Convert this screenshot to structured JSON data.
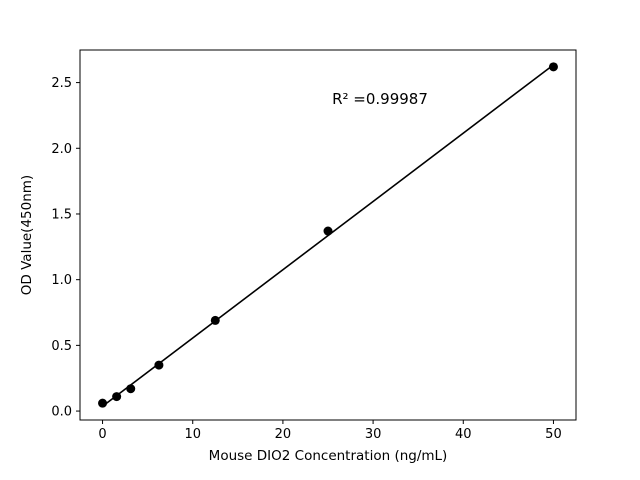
{
  "chart_data": {
    "type": "scatter",
    "title": "",
    "xlabel": "Mouse DIO2 Concentration (ng/mL)",
    "ylabel": "OD Value(450nm)",
    "x": [
      0,
      1.5625,
      3.125,
      6.25,
      12.5,
      25,
      50
    ],
    "y": [
      0.06,
      0.11,
      0.17,
      0.35,
      0.69,
      1.37,
      2.62
    ],
    "fit": "linear",
    "annotation": {
      "text": "R² =0.99987"
    },
    "xticks": [
      0,
      10,
      20,
      30,
      40,
      50
    ],
    "yticks": [
      0.0,
      0.5,
      1.0,
      1.5,
      2.0,
      2.5
    ],
    "xlim": [
      -2.5,
      52.5
    ],
    "ylim": [
      -0.068,
      2.748
    ],
    "marker_color": "#000000",
    "line_color": "#000000",
    "background": "#ffffff",
    "grid": false,
    "legend": "none"
  }
}
